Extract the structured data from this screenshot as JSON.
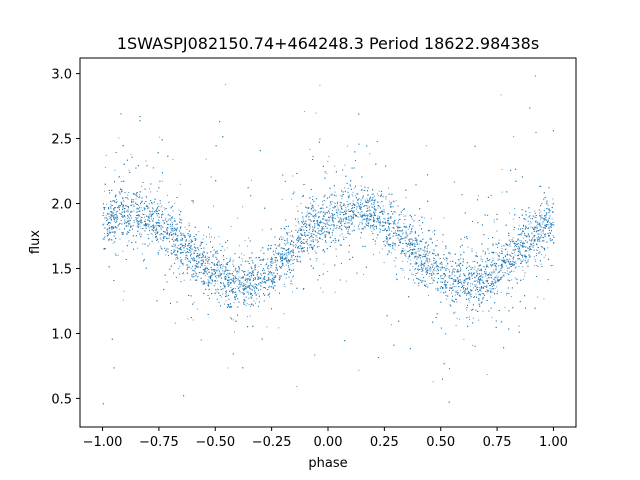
{
  "chart_data": {
    "type": "scatter",
    "title": "1SWASPJ082150.74+464248.3 Period 18622.98438s",
    "xlabel": "phase",
    "ylabel": "flux",
    "xlim": [
      -1.1,
      1.1
    ],
    "ylim": [
      0.28,
      3.12
    ],
    "x_ticks": [
      -1.0,
      -0.75,
      -0.5,
      -0.25,
      0.0,
      0.25,
      0.5,
      0.75,
      1.0
    ],
    "x_tick_labels": [
      "−1.00",
      "−0.75",
      "−0.50",
      "−0.25",
      "0.00",
      "0.25",
      "0.50",
      "0.75",
      "1.00"
    ],
    "y_ticks": [
      0.5,
      1.0,
      1.5,
      2.0,
      2.5,
      3.0
    ],
    "y_tick_labels": [
      "0.5",
      "1.0",
      "1.5",
      "2.0",
      "2.5",
      "3.0"
    ],
    "grid": false,
    "marker_color": "#1f77b4",
    "series": [
      {
        "x": [
          -1.0,
          -0.9,
          -0.8,
          -0.7,
          -0.6,
          -0.5,
          -0.4,
          -0.3,
          -0.2,
          -0.1,
          0.0,
          0.1,
          0.2,
          0.3,
          0.4,
          0.5,
          0.6,
          0.7,
          0.8,
          0.9,
          1.0
        ],
        "values": [
          1.88,
          1.93,
          1.9,
          1.78,
          1.6,
          1.45,
          1.38,
          1.42,
          1.58,
          1.78,
          1.88,
          1.95,
          1.92,
          1.8,
          1.6,
          1.46,
          1.38,
          1.42,
          1.58,
          1.76,
          1.87
        ]
      }
    ]
  }
}
